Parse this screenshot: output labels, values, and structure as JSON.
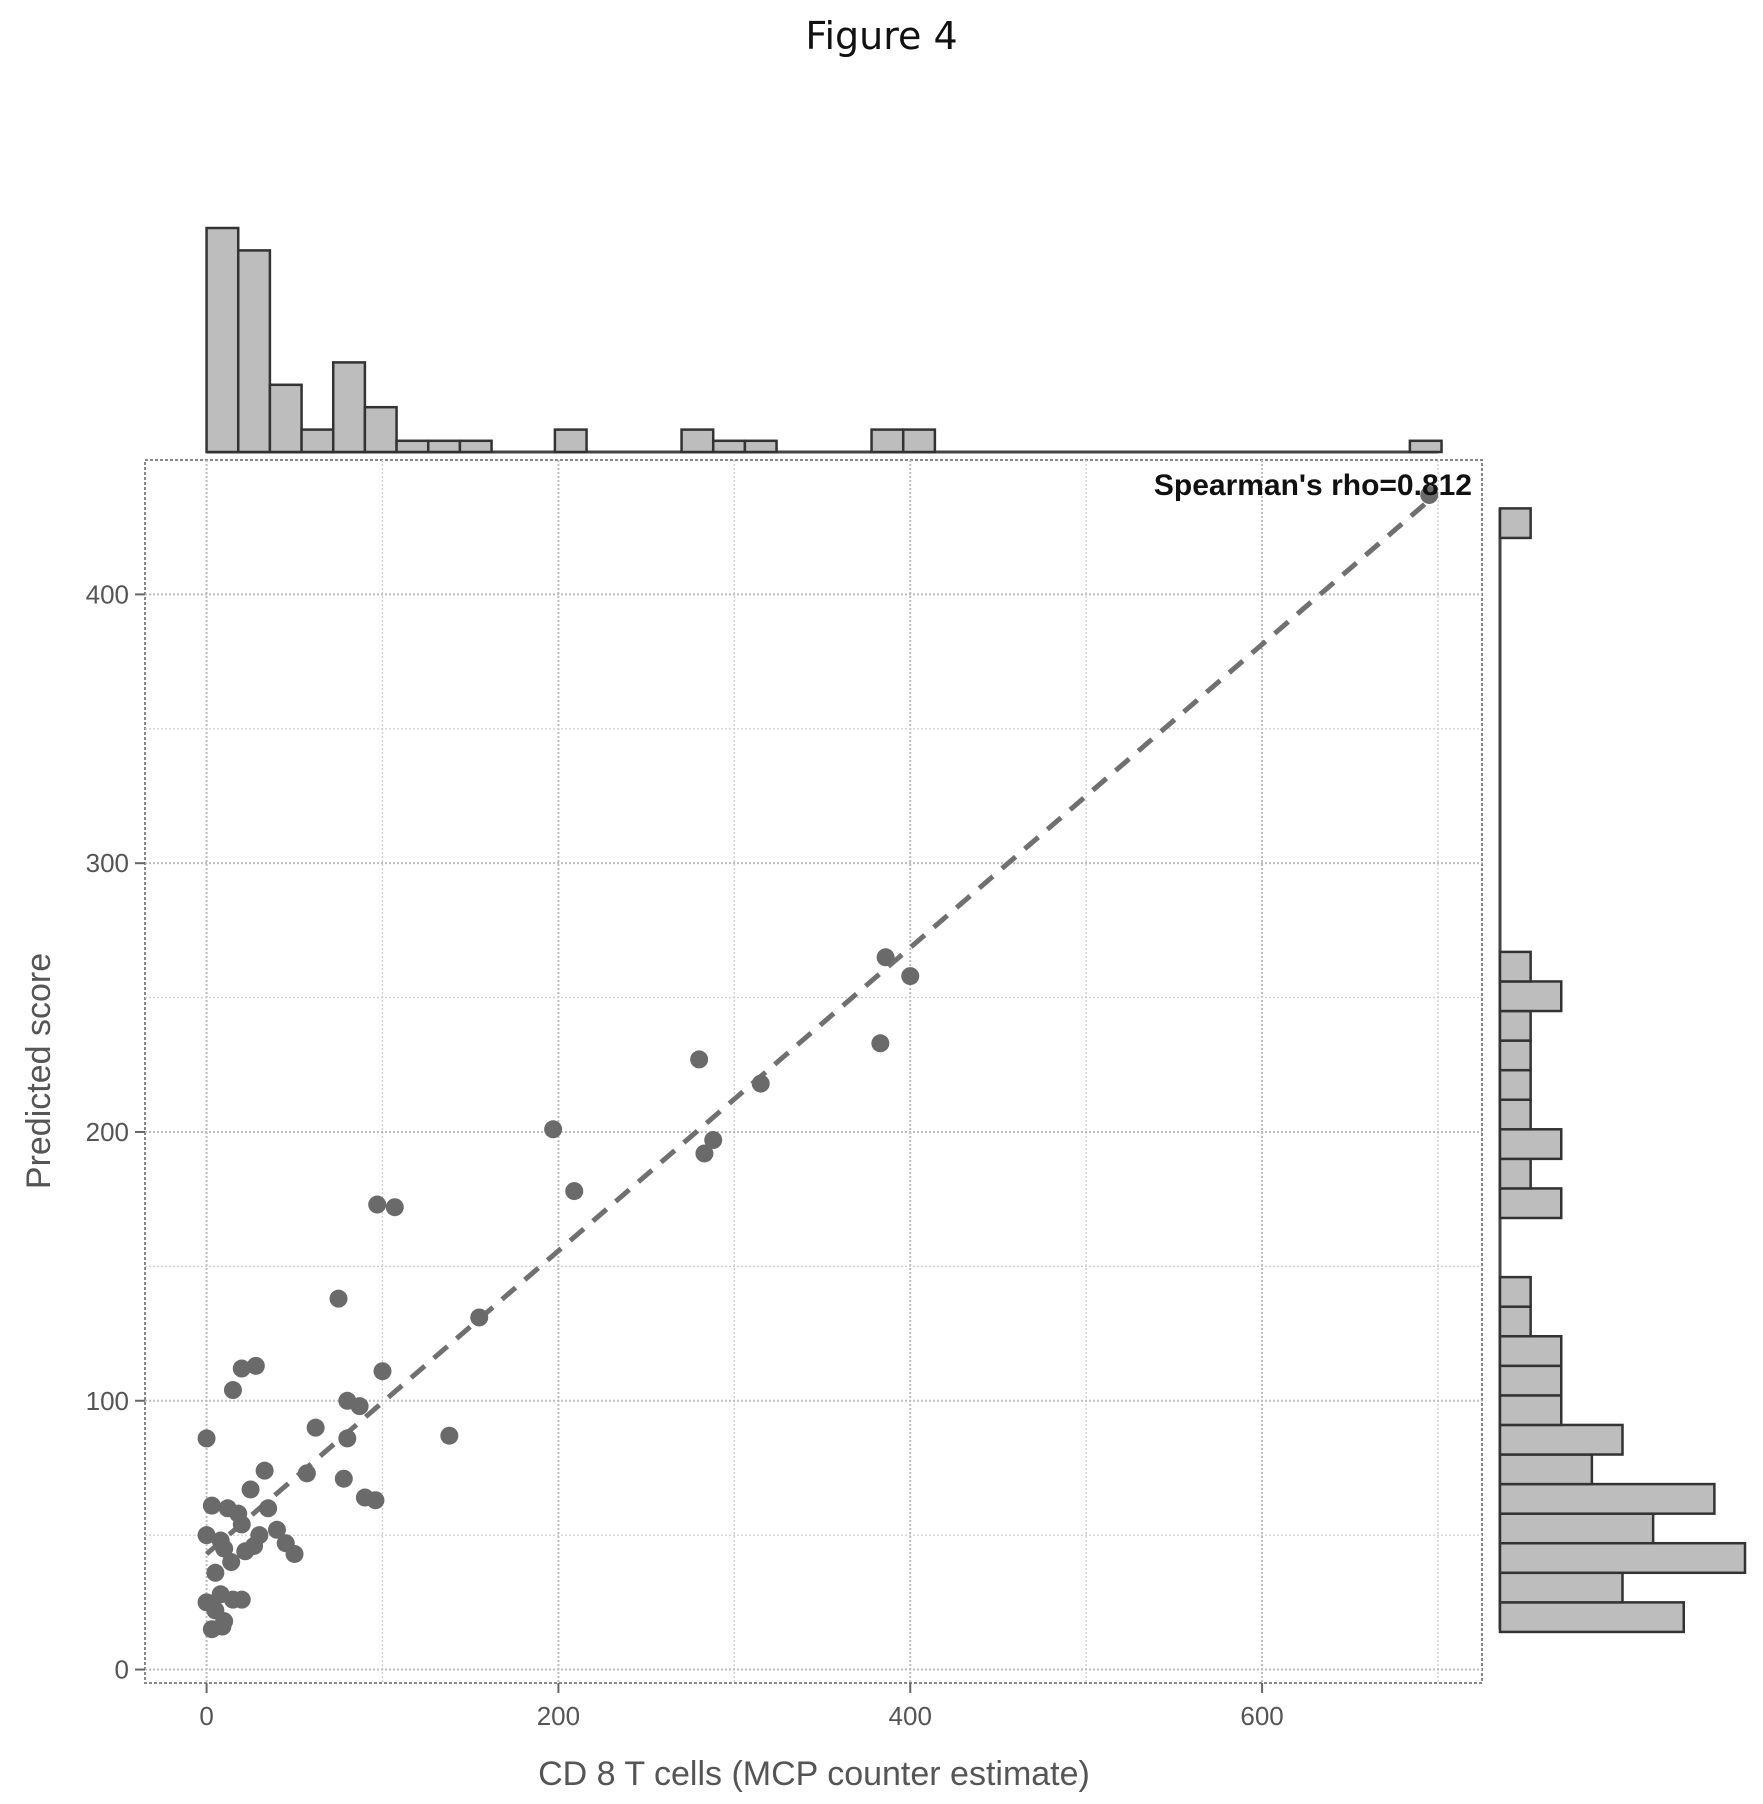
{
  "figure": {
    "title": "Figure 4"
  },
  "chart_data": {
    "type": "scatter",
    "title": "",
    "xlabel": "CD 8 T cells (MCP counter estimate)",
    "ylabel": "Predicted score",
    "xlim": [
      -35,
      725
    ],
    "ylim": [
      -5,
      450
    ],
    "x_ticks": [
      0,
      200,
      400,
      600
    ],
    "y_ticks": [
      0,
      100,
      200,
      300,
      400
    ],
    "x_minor": [
      100,
      300,
      500,
      700
    ],
    "y_minor": [
      50,
      150,
      250,
      350
    ],
    "grid": true,
    "annotation": "Spearman's rho=0.812",
    "annotation_position": "top-right",
    "trend_line": {
      "style": "dashed",
      "x": [
        0,
        695
      ],
      "y": [
        43,
        435
      ]
    },
    "points": [
      [
        695,
        437
      ],
      [
        386,
        265
      ],
      [
        400,
        258
      ],
      [
        383,
        233
      ],
      [
        280,
        227
      ],
      [
        315,
        218
      ],
      [
        288,
        197
      ],
      [
        283,
        192
      ],
      [
        197,
        201
      ],
      [
        209,
        178
      ],
      [
        97,
        173
      ],
      [
        107,
        172
      ],
      [
        155,
        131
      ],
      [
        75,
        138
      ],
      [
        100,
        111
      ],
      [
        138,
        87
      ],
      [
        20,
        112
      ],
      [
        28,
        113
      ],
      [
        15,
        104
      ],
      [
        80,
        100
      ],
      [
        87,
        98
      ],
      [
        62,
        90
      ],
      [
        80,
        86
      ],
      [
        0,
        86
      ],
      [
        78,
        71
      ],
      [
        90,
        64
      ],
      [
        96,
        63
      ],
      [
        57,
        73
      ],
      [
        33,
        74
      ],
      [
        25,
        67
      ],
      [
        35,
        60
      ],
      [
        40,
        52
      ],
      [
        45,
        47
      ],
      [
        50,
        43
      ],
      [
        30,
        50
      ],
      [
        22,
        44
      ],
      [
        27,
        46
      ],
      [
        20,
        54
      ],
      [
        18,
        58
      ],
      [
        12,
        60
      ],
      [
        3,
        61
      ],
      [
        0,
        50
      ],
      [
        8,
        48
      ],
      [
        10,
        45
      ],
      [
        14,
        40
      ],
      [
        5,
        36
      ],
      [
        0,
        25
      ],
      [
        8,
        28
      ],
      [
        15,
        26
      ],
      [
        20,
        26
      ],
      [
        5,
        22
      ],
      [
        10,
        18
      ],
      [
        3,
        15
      ],
      [
        9,
        16
      ]
    ],
    "x_hist": {
      "bin_width": 18,
      "bins": [
        [
          9,
          10
        ],
        [
          27,
          9
        ],
        [
          45,
          3
        ],
        [
          63,
          1
        ],
        [
          81,
          4
        ],
        [
          99,
          2
        ],
        [
          117,
          0.5
        ],
        [
          135,
          0.5
        ],
        [
          153,
          0.5
        ],
        [
          207,
          1
        ],
        [
          279,
          1
        ],
        [
          297,
          0.5
        ],
        [
          315,
          0.5
        ],
        [
          387,
          1
        ],
        [
          405,
          1
        ],
        [
          693,
          0.5
        ]
      ]
    },
    "y_hist": {
      "bin_width": 11,
      "bins": [
        [
          19.5,
          6
        ],
        [
          30.5,
          4
        ],
        [
          41.5,
          8
        ],
        [
          52.5,
          5
        ],
        [
          63.5,
          7
        ],
        [
          74.5,
          3
        ],
        [
          85.5,
          4
        ],
        [
          96.5,
          2
        ],
        [
          107.5,
          2
        ],
        [
          118.5,
          2
        ],
        [
          129.5,
          1
        ],
        [
          140.5,
          1
        ],
        [
          173.5,
          2
        ],
        [
          184.5,
          1
        ],
        [
          195.5,
          2
        ],
        [
          206.5,
          1
        ],
        [
          217.5,
          1
        ],
        [
          228.5,
          1
        ],
        [
          239.5,
          1
        ],
        [
          250.5,
          2
        ],
        [
          261.5,
          1
        ],
        [
          426.5,
          1
        ]
      ]
    }
  }
}
